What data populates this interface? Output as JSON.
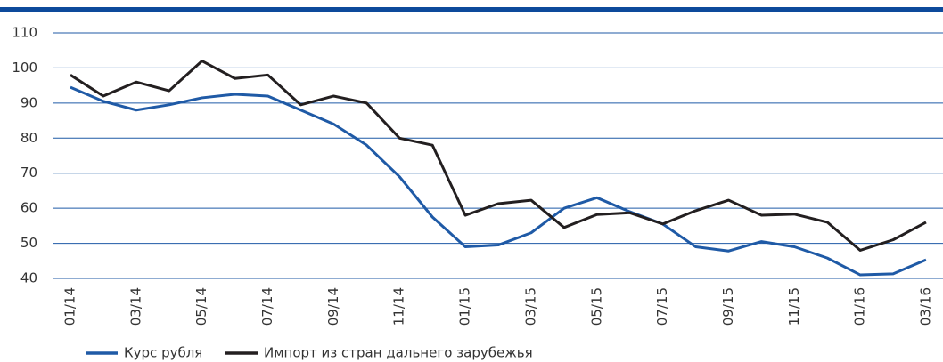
{
  "chart_data": {
    "type": "line",
    "categories": [
      "01/14",
      null,
      "03/14",
      null,
      "05/14",
      null,
      "07/14",
      null,
      "09/14",
      null,
      "11/14",
      null,
      "01/15",
      null,
      "03/15",
      null,
      "05/15",
      null,
      "07/15",
      null,
      "09/15",
      null,
      "11/15",
      null,
      "01/16",
      null,
      "03/16"
    ],
    "series": [
      {
        "name": "Курс рубля",
        "color": "#1f5aa6",
        "values": [
          94.5,
          90.5,
          88,
          89.5,
          91.5,
          92.5,
          92,
          88,
          84,
          78,
          69,
          57.5,
          49,
          49.5,
          53,
          60,
          63,
          59,
          55.5,
          49,
          47.8,
          50.5,
          49,
          45.8,
          41,
          41.3,
          45.3
        ]
      },
      {
        "name": "Импорт из стран дальнего зарубежья",
        "color": "#231f20",
        "values": [
          98,
          92,
          96,
          93.5,
          102,
          97,
          98,
          89.5,
          92,
          90,
          80,
          78,
          58,
          61.3,
          62.3,
          54.5,
          58.2,
          58.7,
          55.5,
          59.3,
          62.3,
          58,
          58.3,
          56,
          48,
          51,
          56
        ]
      }
    ],
    "ylim": [
      40,
      110
    ],
    "yticks": [
      40,
      50,
      60,
      70,
      80,
      90,
      100,
      110
    ],
    "grid": true,
    "legend": "bottom"
  }
}
